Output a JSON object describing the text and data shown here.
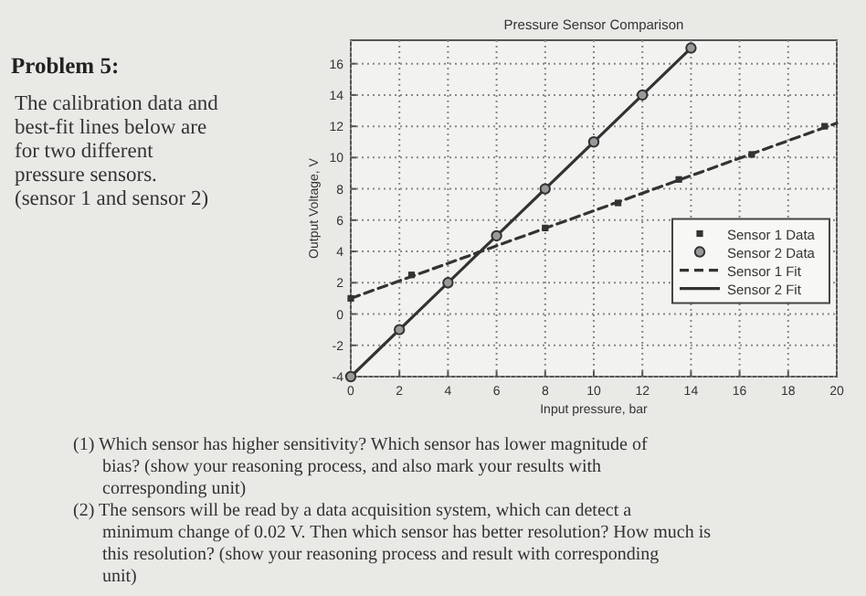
{
  "chart_data": {
    "type": "scatter",
    "title": "Pressure Sensor Comparison",
    "xlabel": "Input pressure, bar",
    "ylabel": "Output Voltage, V",
    "xlim": [
      0,
      20
    ],
    "xticks": [
      0,
      2,
      4,
      6,
      8,
      10,
      12,
      14,
      16,
      18,
      20
    ],
    "ylim": [
      -4,
      17.5
    ],
    "yticks": [
      -4,
      -2,
      0,
      2,
      4,
      6,
      8,
      10,
      12,
      14,
      16
    ],
    "grid": true,
    "legend": "bottom right",
    "series": [
      {
        "name": "Sensor 1 Data",
        "marker": "square",
        "color": "#333333",
        "x": [
          0,
          2.5,
          8,
          11,
          13.5,
          16.5,
          19.5
        ],
        "values": [
          1,
          2.5,
          5.5,
          7.1,
          8.6,
          10.2,
          12
        ]
      },
      {
        "name": "Sensor 2 Data",
        "marker": "circle",
        "color": "#333333",
        "x": [
          0,
          2,
          4,
          6,
          8,
          10,
          12,
          14
        ],
        "values": [
          -4,
          -1,
          2,
          5,
          8,
          11,
          14,
          17
        ]
      },
      {
        "name": "Sensor 1 Fit",
        "type": "line",
        "line_style": "dashed",
        "color": "#333333",
        "x": [
          0,
          20
        ],
        "values": [
          1,
          12.2
        ]
      },
      {
        "name": "Sensor 2 Fit",
        "type": "line",
        "line_style": "solid",
        "color": "#333333",
        "x": [
          0,
          14
        ],
        "values": [
          -4,
          17
        ]
      }
    ],
    "annotations": [
      "Problem 5:",
      "The calibration data and best-fit lines below are for two different pressure sensors. (sensor 1 and sensor 2)",
      "(1) Which sensor has higher sensitivity? Which sensor has lower magnitude of bias? (show your reasoning process, and also mark your results with corresponding unit)",
      "(2) The sensors will be read by a data acquisition system, which can detect a minimum change of 0.02 V. Then which sensor has better resolution? How much is this resolution? (show your reasoning process and result with corresponding unit)"
    ]
  }
}
